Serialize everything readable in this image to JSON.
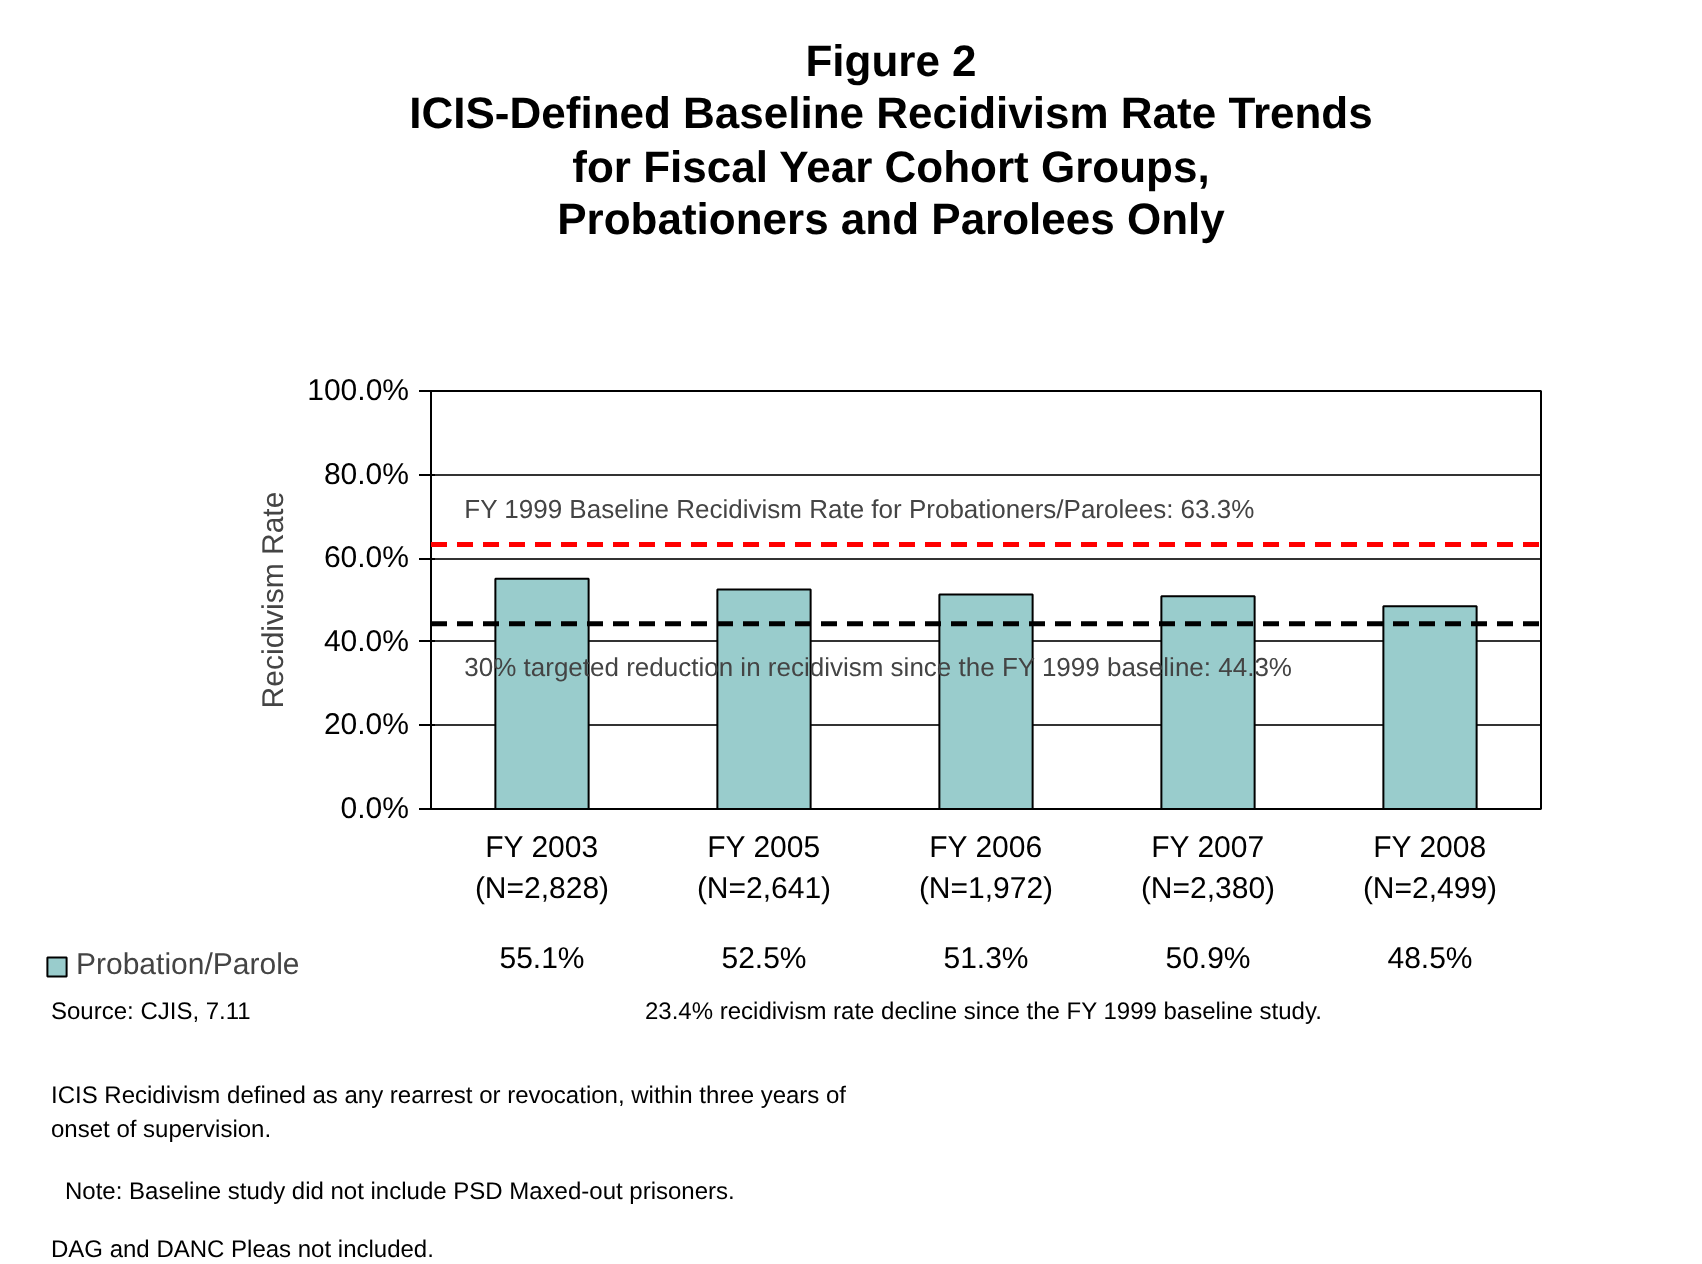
{
  "chart_data": {
    "type": "bar",
    "title": "Figure 2\nICIS-Defined Baseline Recidivism Rate Trends\nfor Fiscal Year Cohort Groups,\nProbationers and Parolees Only",
    "ylabel": "Recidivism Rate",
    "categories": [
      "FY 2003\n(N=2,828)",
      "FY 2005\n(N=2,641)",
      "FY 2006\n(N=1,972)",
      "FY 2007\n(N=2,380)",
      "FY 2008\n(N=2,499)"
    ],
    "series": [
      {
        "name": "Probation/Parole",
        "color": "#99cccc",
        "values": [
          55.1,
          52.5,
          51.3,
          50.9,
          48.5
        ]
      }
    ],
    "value_labels": [
      "55.1%",
      "52.5%",
      "51.3%",
      "50.9%",
      "48.5%"
    ],
    "ylim": [
      0,
      100
    ],
    "yticks": [
      {
        "value": 0,
        "label": "0.0%"
      },
      {
        "value": 20,
        "label": "20.0%"
      },
      {
        "value": 40,
        "label": "40.0%"
      },
      {
        "value": 60,
        "label": "60.0%"
      },
      {
        "value": 80,
        "label": "80.0%"
      },
      {
        "value": 100,
        "label": "100.0%"
      }
    ],
    "grid": "y",
    "legend": "bottom left",
    "ref_lines": [
      {
        "axis": "y",
        "value": 63.3,
        "label": "FY 1999 Baseline Recidivism Rate for Probationers/Parolees: 63.3%",
        "color": "#ff0000",
        "line_style": "dashed"
      },
      {
        "axis": "y",
        "value": 44.3,
        "label": "30% targeted reduction in recidivism since the FY 1999 baseline: 44.3%",
        "color": "#000000",
        "line_style": "dashed"
      }
    ],
    "annotations": [
      "Source: CJIS, 7.11",
      "23.4% recidivism rate decline since the FY 1999 baseline study.",
      "ICIS Recidivism defined as any rearrest or revocation, within three years of\nonset of supervision.",
      "Note: Baseline study did not include PSD Maxed-out prisoners.",
      "DAG and DANC Pleas not included."
    ]
  }
}
